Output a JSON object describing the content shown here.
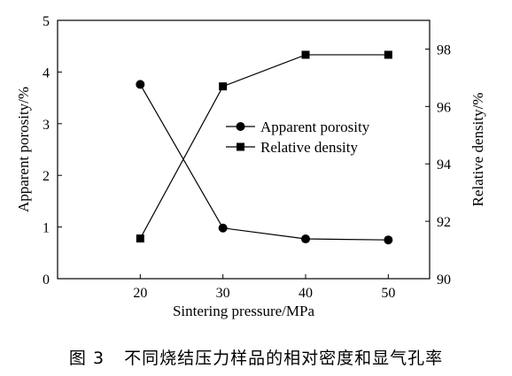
{
  "caption": {
    "label": "图 3",
    "text": "不同烧结压力样品的相对密度和显气孔率"
  },
  "chart_data": {
    "type": "line",
    "title": "",
    "xlabel": "Sintering pressure/MPa",
    "ylabel_left": "Apparent porosity/%",
    "ylabel_right": "Relative density/%",
    "x": [
      20,
      30,
      40,
      50
    ],
    "xlim": [
      10,
      55
    ],
    "x_ticks": [
      "20",
      "30",
      "40",
      "50"
    ],
    "ylim_left": [
      0,
      5
    ],
    "y_ticks_left": [
      "0",
      "1",
      "2",
      "3",
      "4",
      "5"
    ],
    "ylim_right": [
      90,
      99
    ],
    "y_ticks_right": [
      "90",
      "92",
      "94",
      "96",
      "98"
    ],
    "grid": false,
    "legend_position": "center-right",
    "series": [
      {
        "name": "Apparent porosity",
        "axis": "left",
        "marker": "circle",
        "color": "#000000",
        "values": [
          3.76,
          0.98,
          0.77,
          0.75
        ]
      },
      {
        "name": "Relative density",
        "axis": "right",
        "marker": "square",
        "color": "#000000",
        "values": [
          91.4,
          96.7,
          97.8,
          97.8
        ]
      }
    ]
  }
}
